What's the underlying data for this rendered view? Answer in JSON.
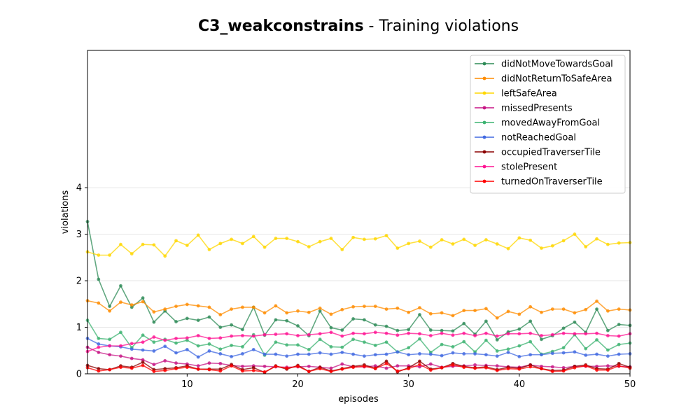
{
  "chart_data": {
    "type": "line",
    "title_bold": "C3_weakconstrains",
    "title_rest": " - Training violations",
    "xlabel": "episodes",
    "ylabel": "violations",
    "xlim": [
      1,
      50
    ],
    "ylim": [
      0,
      6.95
    ],
    "x_ticks": [
      10,
      20,
      30,
      40,
      50
    ],
    "y_ticks": [
      0,
      1,
      2,
      3,
      4
    ],
    "grid": "horizontal",
    "legend_position": "top-right",
    "x": [
      1,
      2,
      3,
      4,
      5,
      6,
      7,
      8,
      9,
      10,
      11,
      12,
      13,
      14,
      15,
      16,
      17,
      18,
      19,
      20,
      21,
      22,
      23,
      24,
      25,
      26,
      27,
      28,
      29,
      30,
      31,
      32,
      33,
      34,
      35,
      36,
      37,
      38,
      39,
      40,
      41,
      42,
      43,
      44,
      45,
      46,
      47,
      48,
      49,
      50
    ],
    "series": [
      {
        "name": "didNotMoveTowardsGoal",
        "color": "#2e8b57",
        "values": [
          3.27,
          2.03,
          1.45,
          1.89,
          1.43,
          1.63,
          1.11,
          1.35,
          1.12,
          1.19,
          1.15,
          1.22,
          1.0,
          1.05,
          0.95,
          1.43,
          0.83,
          1.16,
          1.14,
          1.03,
          0.82,
          1.35,
          0.99,
          0.94,
          1.18,
          1.16,
          1.05,
          1.02,
          0.93,
          0.95,
          1.27,
          0.94,
          0.93,
          0.92,
          1.08,
          0.85,
          1.13,
          0.73,
          0.9,
          0.96,
          1.13,
          0.74,
          0.82,
          0.98,
          1.11,
          0.89,
          1.39,
          0.93,
          1.06,
          1.04
        ]
      },
      {
        "name": "didNotReturnToSafeArea",
        "color": "#ff8c00",
        "values": [
          1.57,
          1.52,
          1.35,
          1.54,
          1.48,
          1.55,
          1.33,
          1.39,
          1.45,
          1.49,
          1.46,
          1.43,
          1.27,
          1.39,
          1.43,
          1.43,
          1.31,
          1.46,
          1.31,
          1.35,
          1.32,
          1.41,
          1.28,
          1.38,
          1.44,
          1.45,
          1.45,
          1.39,
          1.41,
          1.32,
          1.42,
          1.29,
          1.31,
          1.25,
          1.36,
          1.36,
          1.4,
          1.2,
          1.34,
          1.28,
          1.44,
          1.32,
          1.39,
          1.39,
          1.31,
          1.38,
          1.56,
          1.35,
          1.39,
          1.37
        ]
      },
      {
        "name": "leftSafeArea",
        "color": "#ffd700",
        "values": [
          2.62,
          2.55,
          2.55,
          2.78,
          2.58,
          2.78,
          2.77,
          2.53,
          2.86,
          2.76,
          2.98,
          2.67,
          2.8,
          2.89,
          2.8,
          2.95,
          2.72,
          2.91,
          2.91,
          2.84,
          2.73,
          2.84,
          2.91,
          2.67,
          2.93,
          2.89,
          2.9,
          2.97,
          2.7,
          2.8,
          2.85,
          2.72,
          2.88,
          2.79,
          2.89,
          2.76,
          2.88,
          2.79,
          2.69,
          2.92,
          2.87,
          2.7,
          2.75,
          2.86,
          3.0,
          2.73,
          2.9,
          2.78,
          2.81,
          2.82
        ]
      },
      {
        "name": "missedPresents",
        "color": "#c71585",
        "values": [
          0.57,
          0.46,
          0.41,
          0.38,
          0.33,
          0.3,
          0.2,
          0.28,
          0.23,
          0.21,
          0.17,
          0.23,
          0.22,
          0.18,
          0.16,
          0.17,
          0.16,
          0.15,
          0.14,
          0.15,
          0.16,
          0.14,
          0.12,
          0.21,
          0.15,
          0.15,
          0.17,
          0.12,
          0.17,
          0.17,
          0.15,
          0.21,
          0.14,
          0.16,
          0.17,
          0.19,
          0.18,
          0.17,
          0.15,
          0.14,
          0.19,
          0.16,
          0.15,
          0.13,
          0.16,
          0.16,
          0.16,
          0.17,
          0.16,
          0.15
        ]
      },
      {
        "name": "movedAwayFromGoal",
        "color": "#3cb371",
        "values": [
          1.15,
          0.76,
          0.74,
          0.89,
          0.56,
          0.83,
          0.68,
          0.74,
          0.66,
          0.72,
          0.6,
          0.64,
          0.53,
          0.61,
          0.58,
          0.84,
          0.4,
          0.68,
          0.62,
          0.62,
          0.52,
          0.74,
          0.58,
          0.57,
          0.74,
          0.68,
          0.61,
          0.68,
          0.47,
          0.56,
          0.75,
          0.46,
          0.63,
          0.58,
          0.69,
          0.47,
          0.72,
          0.49,
          0.53,
          0.6,
          0.69,
          0.42,
          0.48,
          0.56,
          0.84,
          0.54,
          0.73,
          0.51,
          0.63,
          0.66
        ]
      },
      {
        "name": "notReachedGoal",
        "color": "#4169e1",
        "values": [
          0.76,
          0.64,
          0.6,
          0.58,
          0.53,
          0.51,
          0.49,
          0.59,
          0.45,
          0.52,
          0.36,
          0.49,
          0.43,
          0.37,
          0.43,
          0.52,
          0.42,
          0.42,
          0.38,
          0.42,
          0.42,
          0.45,
          0.42,
          0.46,
          0.42,
          0.38,
          0.41,
          0.42,
          0.47,
          0.41,
          0.43,
          0.42,
          0.39,
          0.45,
          0.43,
          0.43,
          0.41,
          0.38,
          0.46,
          0.37,
          0.41,
          0.41,
          0.44,
          0.45,
          0.47,
          0.4,
          0.42,
          0.38,
          0.42,
          0.43
        ]
      },
      {
        "name": "occupiedTraverserTile",
        "color": "#8b0000",
        "values": [
          0.18,
          0.11,
          0.09,
          0.17,
          0.14,
          0.25,
          0.09,
          0.11,
          0.13,
          0.17,
          0.1,
          0.1,
          0.1,
          0.2,
          0.09,
          0.13,
          0.03,
          0.17,
          0.1,
          0.18,
          0.05,
          0.14,
          0.06,
          0.11,
          0.16,
          0.19,
          0.12,
          0.27,
          0.04,
          0.13,
          0.27,
          0.1,
          0.13,
          0.22,
          0.16,
          0.13,
          0.15,
          0.09,
          0.14,
          0.12,
          0.19,
          0.11,
          0.07,
          0.08,
          0.16,
          0.19,
          0.11,
          0.1,
          0.22,
          0.14
        ]
      },
      {
        "name": "stolePresent",
        "color": "#ff1493",
        "values": [
          0.48,
          0.57,
          0.6,
          0.6,
          0.65,
          0.68,
          0.79,
          0.72,
          0.76,
          0.77,
          0.82,
          0.76,
          0.77,
          0.81,
          0.82,
          0.81,
          0.84,
          0.85,
          0.86,
          0.82,
          0.84,
          0.86,
          0.89,
          0.81,
          0.87,
          0.86,
          0.89,
          0.87,
          0.83,
          0.87,
          0.86,
          0.82,
          0.87,
          0.83,
          0.87,
          0.82,
          0.87,
          0.81,
          0.86,
          0.86,
          0.87,
          0.82,
          0.84,
          0.87,
          0.86,
          0.86,
          0.87,
          0.82,
          0.81,
          0.86
        ]
      },
      {
        "name": "turnedOnTraverserTile",
        "color": "#ff0000",
        "values": [
          0.13,
          0.06,
          0.09,
          0.14,
          0.12,
          0.18,
          0.05,
          0.07,
          0.11,
          0.14,
          0.1,
          0.09,
          0.06,
          0.17,
          0.06,
          0.07,
          0.04,
          0.16,
          0.12,
          0.16,
          0.05,
          0.11,
          0.05,
          0.1,
          0.14,
          0.16,
          0.11,
          0.22,
          0.06,
          0.11,
          0.2,
          0.08,
          0.13,
          0.19,
          0.14,
          0.12,
          0.13,
          0.07,
          0.11,
          0.1,
          0.15,
          0.11,
          0.05,
          0.06,
          0.13,
          0.17,
          0.08,
          0.08,
          0.17,
          0.12
        ]
      }
    ]
  }
}
